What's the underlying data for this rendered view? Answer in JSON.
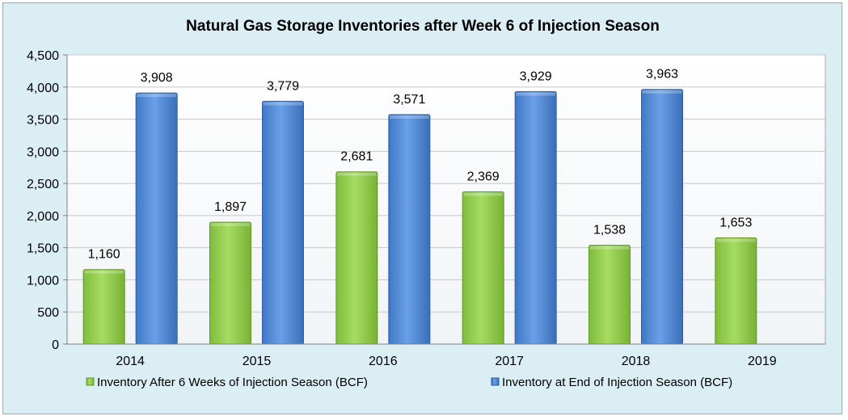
{
  "chart_data": {
    "type": "bar",
    "title": "Natural Gas Storage Inventories after Week 6 of Injection Season",
    "categories": [
      "2014",
      "2015",
      "2016",
      "2017",
      "2018",
      "2019"
    ],
    "series": [
      {
        "name": "Inventory After 6 Weeks of Injection Season (BCF)",
        "values": [
          1160,
          1897,
          2681,
          2369,
          1538,
          1653
        ],
        "labels": [
          "1,160",
          "1,897",
          "2,681",
          "2,369",
          "1,538",
          "1,653"
        ],
        "color": "#92d050"
      },
      {
        "name": "Inventory at End of Injection Season (BCF)",
        "values": [
          3908,
          3779,
          3571,
          3929,
          3963,
          null
        ],
        "labels": [
          "3,908",
          "3,779",
          "3,571",
          "3,929",
          "3,963",
          ""
        ],
        "color": "#558ed5"
      }
    ],
    "ylim": [
      0,
      4500
    ],
    "yticks": [
      0,
      500,
      1000,
      1500,
      2000,
      2500,
      3000,
      3500,
      4000,
      4500
    ],
    "ytick_labels": [
      "0",
      "500",
      "1,000",
      "1,500",
      "2,000",
      "2,500",
      "3,000",
      "3,500",
      "4,000",
      "4,500"
    ],
    "grid": true,
    "legend_position": "bottom"
  }
}
